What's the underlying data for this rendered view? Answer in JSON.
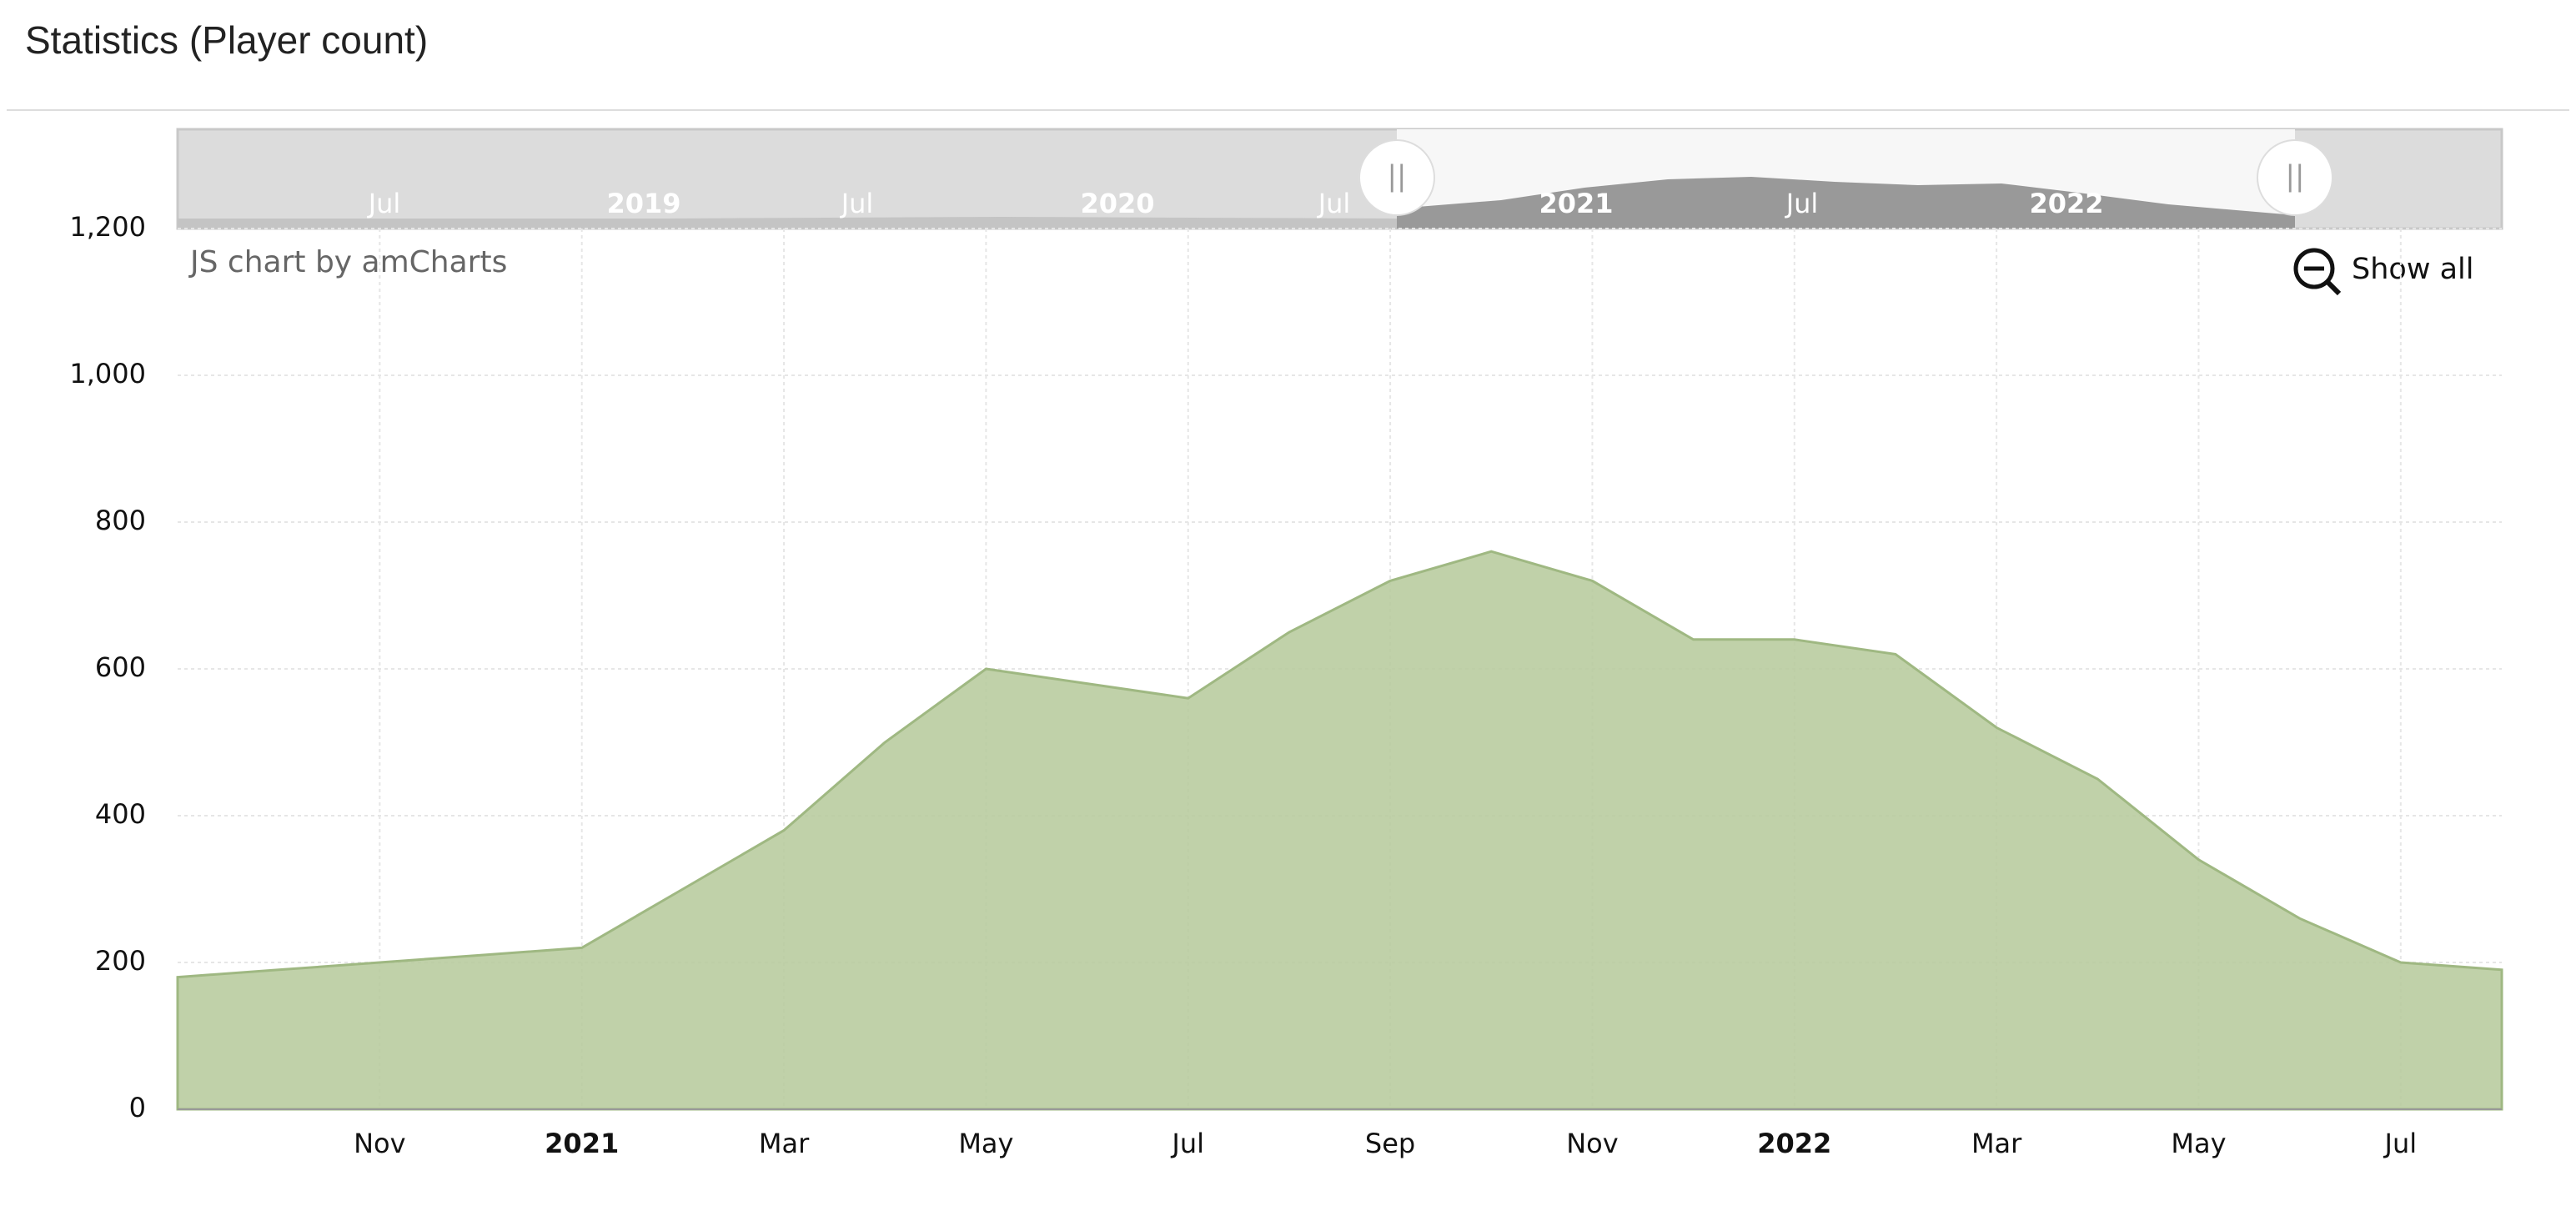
{
  "page_title": "Statistics (Player count)",
  "navigator": {
    "labels": [
      "Jul",
      "2019",
      "Jul",
      "2020",
      "Jul",
      "2021",
      "Jul",
      "2022"
    ]
  },
  "zoom_button": "Show all",
  "credit": "JS chart by amCharts",
  "chart_data": {
    "type": "area",
    "x": [
      "2020-09",
      "2020-10",
      "2020-11",
      "2020-12",
      "2021-01",
      "2021-02",
      "2021-03",
      "2021-04",
      "2021-05",
      "2021-06",
      "2021-07",
      "2021-08",
      "2021-09",
      "2021-10",
      "2021-11",
      "2021-12",
      "2022-01",
      "2022-02",
      "2022-03",
      "2022-04",
      "2022-05",
      "2022-06",
      "2022-07",
      "2022-08"
    ],
    "values": [
      180,
      190,
      200,
      210,
      220,
      300,
      380,
      500,
      600,
      580,
      560,
      650,
      720,
      760,
      720,
      640,
      640,
      620,
      520,
      450,
      340,
      260,
      200,
      190
    ],
    "color": "#b5c99a",
    "xlim": [
      "2020-09",
      "2022-08"
    ],
    "xticks": [
      {
        "value": "2020-11",
        "label": "Nov"
      },
      {
        "value": "2021-01",
        "label": "2021"
      },
      {
        "value": "2021-03",
        "label": "Mar"
      },
      {
        "value": "2021-05",
        "label": "May"
      },
      {
        "value": "2021-07",
        "label": "Jul"
      },
      {
        "value": "2021-09",
        "label": "Sep"
      },
      {
        "value": "2021-11",
        "label": "Nov"
      },
      {
        "value": "2022-01",
        "label": "2022"
      },
      {
        "value": "2022-03",
        "label": "Mar"
      },
      {
        "value": "2022-05",
        "label": "May"
      },
      {
        "value": "2022-07",
        "label": "Jul"
      }
    ],
    "ylim": [
      0,
      1200
    ],
    "yticks": [
      0,
      200,
      400,
      600,
      800,
      {
        "value": 1000,
        "label": "1,000"
      },
      {
        "value": 1200,
        "label": "1,200"
      }
    ],
    "grid": true
  }
}
